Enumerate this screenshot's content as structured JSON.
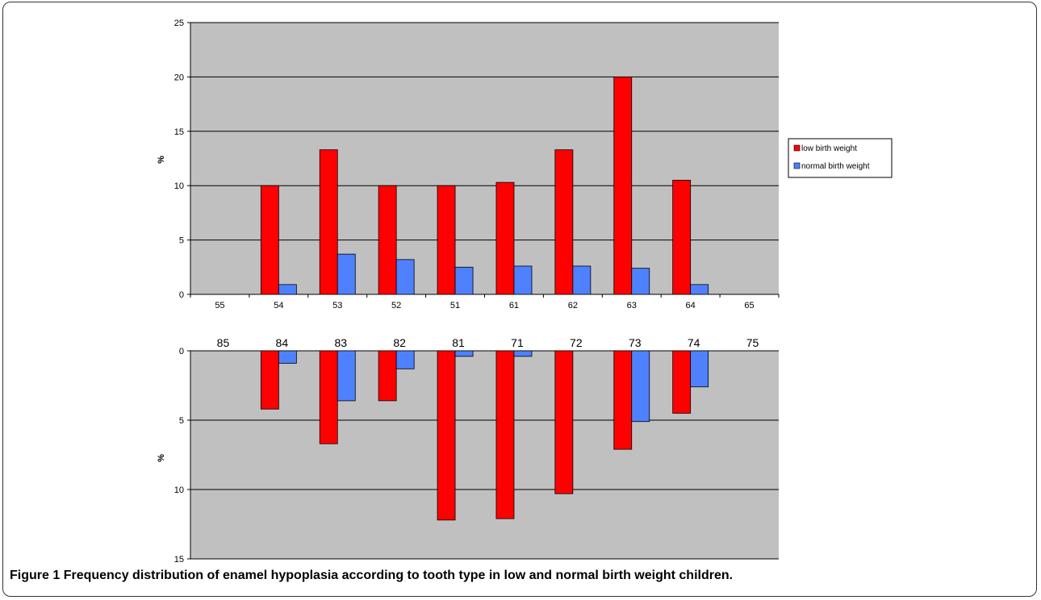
{
  "caption": {
    "label": "Figure 1",
    "text": "Frequency distribution of enamel hypoplasia according to tooth type in low and normal birth weight children."
  },
  "colors": {
    "low_birth_weight": "#ff0000",
    "normal_birth_weight": "#4f81ff",
    "plot_background": "#c0c0c0"
  },
  "legend": {
    "placement": "right",
    "entries": [
      "low birth weight",
      "normal birth weight"
    ]
  },
  "chart_data": [
    {
      "type": "bar",
      "panel": "upper",
      "ylabel": "%",
      "ylim": [
        0,
        25
      ],
      "yticks": [
        0,
        5,
        10,
        15,
        20,
        25
      ],
      "grid": true,
      "categories": [
        "55",
        "54",
        "53",
        "52",
        "51",
        "61",
        "62",
        "63",
        "64",
        "65"
      ],
      "series": [
        {
          "name": "low birth weight",
          "values": [
            0,
            10,
            13.3,
            10,
            10,
            10.3,
            13.3,
            20,
            10.5,
            0
          ]
        },
        {
          "name": "normal birth weight",
          "values": [
            0,
            0.9,
            3.7,
            3.2,
            2.5,
            2.6,
            2.6,
            2.4,
            0.9,
            0
          ]
        }
      ]
    },
    {
      "type": "bar",
      "panel": "lower",
      "ylabel": "%",
      "ylim": [
        0,
        15
      ],
      "yticks": [
        0,
        5,
        10,
        15
      ],
      "inverted": true,
      "grid": true,
      "categories": [
        "85",
        "84",
        "83",
        "82",
        "81",
        "71",
        "72",
        "73",
        "74",
        "75"
      ],
      "series": [
        {
          "name": "low birth weight",
          "values": [
            0,
            4.2,
            6.7,
            3.6,
            12.2,
            12.1,
            10.3,
            7.1,
            4.5,
            0
          ]
        },
        {
          "name": "normal birth weight",
          "values": [
            0,
            0.9,
            3.6,
            1.3,
            0.4,
            0.4,
            0,
            5.1,
            2.6,
            0
          ]
        }
      ]
    }
  ]
}
